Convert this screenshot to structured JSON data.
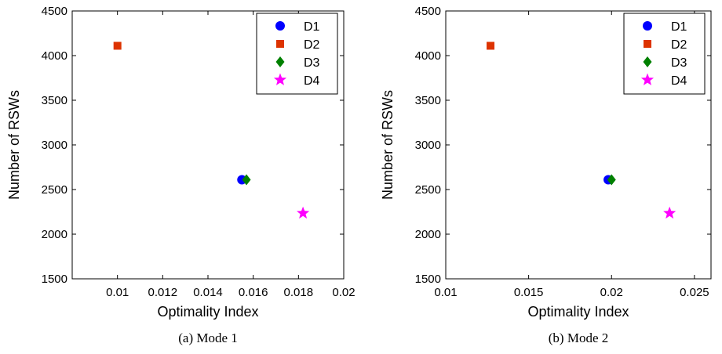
{
  "chart_data": [
    {
      "type": "scatter",
      "caption": "(a)  Mode 1",
      "xlabel": "Optimality Index",
      "ylabel": "Number of RSWs",
      "xlim": [
        0.008,
        0.02
      ],
      "ylim": [
        1500,
        4500
      ],
      "xticks": [
        0.01,
        0.012,
        0.014,
        0.016,
        0.018,
        0.02
      ],
      "xtick_labels": [
        "0.01",
        "0.012",
        "0.014",
        "0.016",
        "0.018",
        "0.02"
      ],
      "yticks": [
        1500,
        2000,
        2500,
        3000,
        3500,
        4000,
        4500
      ],
      "ytick_labels": [
        "1500",
        "2000",
        "2500",
        "3000",
        "3500",
        "4000",
        "4500"
      ],
      "grid": false,
      "legend_position": "top-right",
      "series": [
        {
          "name": "D1",
          "marker": "circle",
          "color": "#0000ff",
          "x": [
            0.0155
          ],
          "y": [
            2610
          ]
        },
        {
          "name": "D2",
          "marker": "square",
          "color": "#dd3300",
          "x": [
            0.01
          ],
          "y": [
            4110
          ]
        },
        {
          "name": "D3",
          "marker": "diamond",
          "color": "#008000",
          "x": [
            0.0157
          ],
          "y": [
            2610
          ]
        },
        {
          "name": "D4",
          "marker": "star",
          "color": "#ff00ff",
          "x": [
            0.0182
          ],
          "y": [
            2235
          ]
        }
      ]
    },
    {
      "type": "scatter",
      "caption": "(b)  Mode 2",
      "xlabel": "Optimality Index",
      "ylabel": "Number of RSWs",
      "xlim": [
        0.01,
        0.026
      ],
      "ylim": [
        1500,
        4500
      ],
      "xticks": [
        0.01,
        0.015,
        0.02,
        0.025
      ],
      "xtick_labels": [
        "0.01",
        "0.015",
        "0.02",
        "0.025"
      ],
      "yticks": [
        1500,
        2000,
        2500,
        3000,
        3500,
        4000,
        4500
      ],
      "ytick_labels": [
        "1500",
        "2000",
        "2500",
        "3000",
        "3500",
        "4000",
        "4500"
      ],
      "grid": false,
      "legend_position": "top-right",
      "series": [
        {
          "name": "D1",
          "marker": "circle",
          "color": "#0000ff",
          "x": [
            0.0198
          ],
          "y": [
            2610
          ]
        },
        {
          "name": "D2",
          "marker": "square",
          "color": "#dd3300",
          "x": [
            0.0127
          ],
          "y": [
            4110
          ]
        },
        {
          "name": "D3",
          "marker": "diamond",
          "color": "#008000",
          "x": [
            0.02
          ],
          "y": [
            2610
          ]
        },
        {
          "name": "D4",
          "marker": "star",
          "color": "#ff00ff",
          "x": [
            0.0235
          ],
          "y": [
            2235
          ]
        }
      ]
    }
  ]
}
